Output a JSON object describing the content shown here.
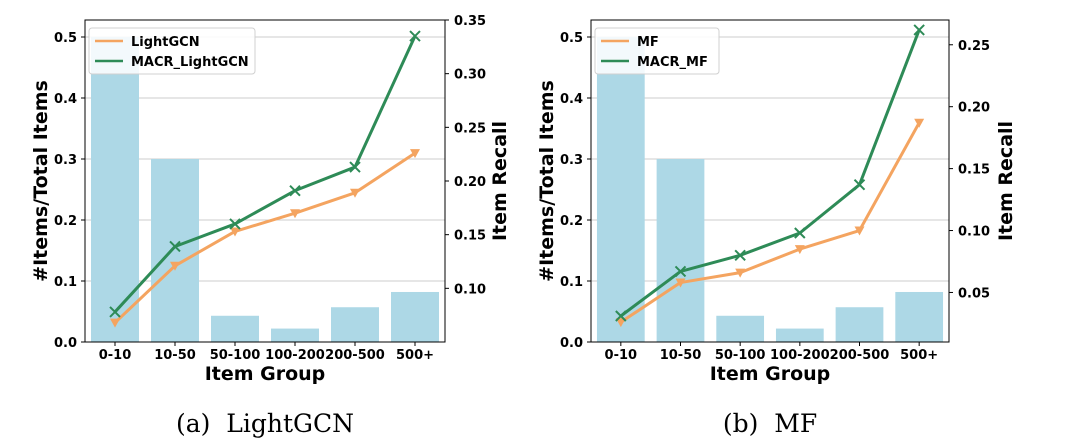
{
  "chart_data": [
    {
      "type": "bar+line",
      "caption": "(a)  LightGCN",
      "categories": [
        "0-10",
        "10-50",
        "50-100",
        "100-200",
        "200-500",
        "500+"
      ],
      "xlabel": "Item Group",
      "ylabel_left": "#Items/Total Items",
      "ylabel_right": "Item Recall",
      "ylim_left": [
        0,
        0.5
      ],
      "ylim_right": [
        0.05,
        0.35
      ],
      "yticks_left": [
        "0.0",
        "0.1",
        "0.2",
        "0.3",
        "0.4",
        "0.5"
      ],
      "yticks_right": [
        "0.10",
        "0.15",
        "0.20",
        "0.25",
        "0.30",
        "0.35"
      ],
      "bar_series": {
        "name": "#Items/Total Items",
        "color": "#add8e6",
        "values": [
          0.5,
          0.3,
          0.043,
          0.022,
          0.057,
          0.082
        ]
      },
      "series": [
        {
          "name": "LightGCN",
          "color": "#f4a460",
          "marker": "triangle-down",
          "values": [
            0.068,
            0.121,
            0.153,
            0.17,
            0.189,
            0.226
          ]
        },
        {
          "name": "MACR_LightGCN",
          "color": "#2e8b57",
          "marker": "x",
          "values": [
            0.078,
            0.139,
            0.16,
            0.191,
            0.213,
            0.335
          ]
        }
      ],
      "legend": "top-left"
    },
    {
      "type": "bar+line",
      "caption": "(b)  MF",
      "categories": [
        "0-10",
        "10-50",
        "50-100",
        "100-200",
        "200-500",
        "500+"
      ],
      "xlabel": "Item Group",
      "ylabel_left": "#Items/Total Items",
      "ylabel_right": "Item Recall",
      "ylim_left": [
        0,
        0.5
      ],
      "ylim_right": [
        0.01,
        0.27
      ],
      "yticks_left": [
        "0.0",
        "0.1",
        "0.2",
        "0.3",
        "0.4",
        "0.5"
      ],
      "yticks_right": [
        "0.05",
        "0.10",
        "0.15",
        "0.20",
        "0.25"
      ],
      "bar_series": {
        "name": "#Items/Total Items",
        "color": "#add8e6",
        "values": [
          0.5,
          0.3,
          0.043,
          0.022,
          0.057,
          0.082
        ]
      },
      "series": [
        {
          "name": "MF",
          "color": "#f4a460",
          "marker": "triangle-down",
          "values": [
            0.026,
            0.058,
            0.066,
            0.085,
            0.1,
            0.187
          ]
        },
        {
          "name": "MACR_MF",
          "color": "#2e8b57",
          "marker": "x",
          "values": [
            0.031,
            0.067,
            0.08,
            0.098,
            0.137,
            0.262
          ]
        }
      ],
      "legend": "top-left"
    }
  ]
}
